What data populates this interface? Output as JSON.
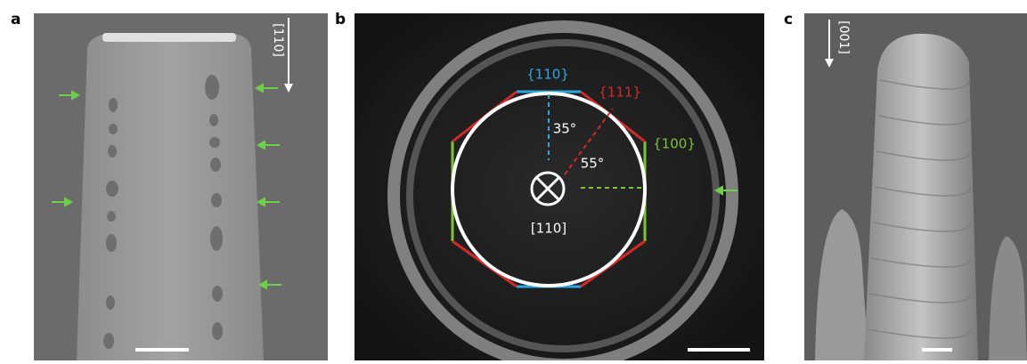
{
  "panels": [
    {
      "label": "a",
      "direction": "[110]"
    },
    {
      "label": "b",
      "facet_top": "{110}",
      "facet_diag": "{111}",
      "facet_side": "{100}",
      "angle_1": "35°",
      "angle_2": "55°",
      "direction": "[110]"
    },
    {
      "label": "c",
      "direction": "[001]"
    }
  ]
}
